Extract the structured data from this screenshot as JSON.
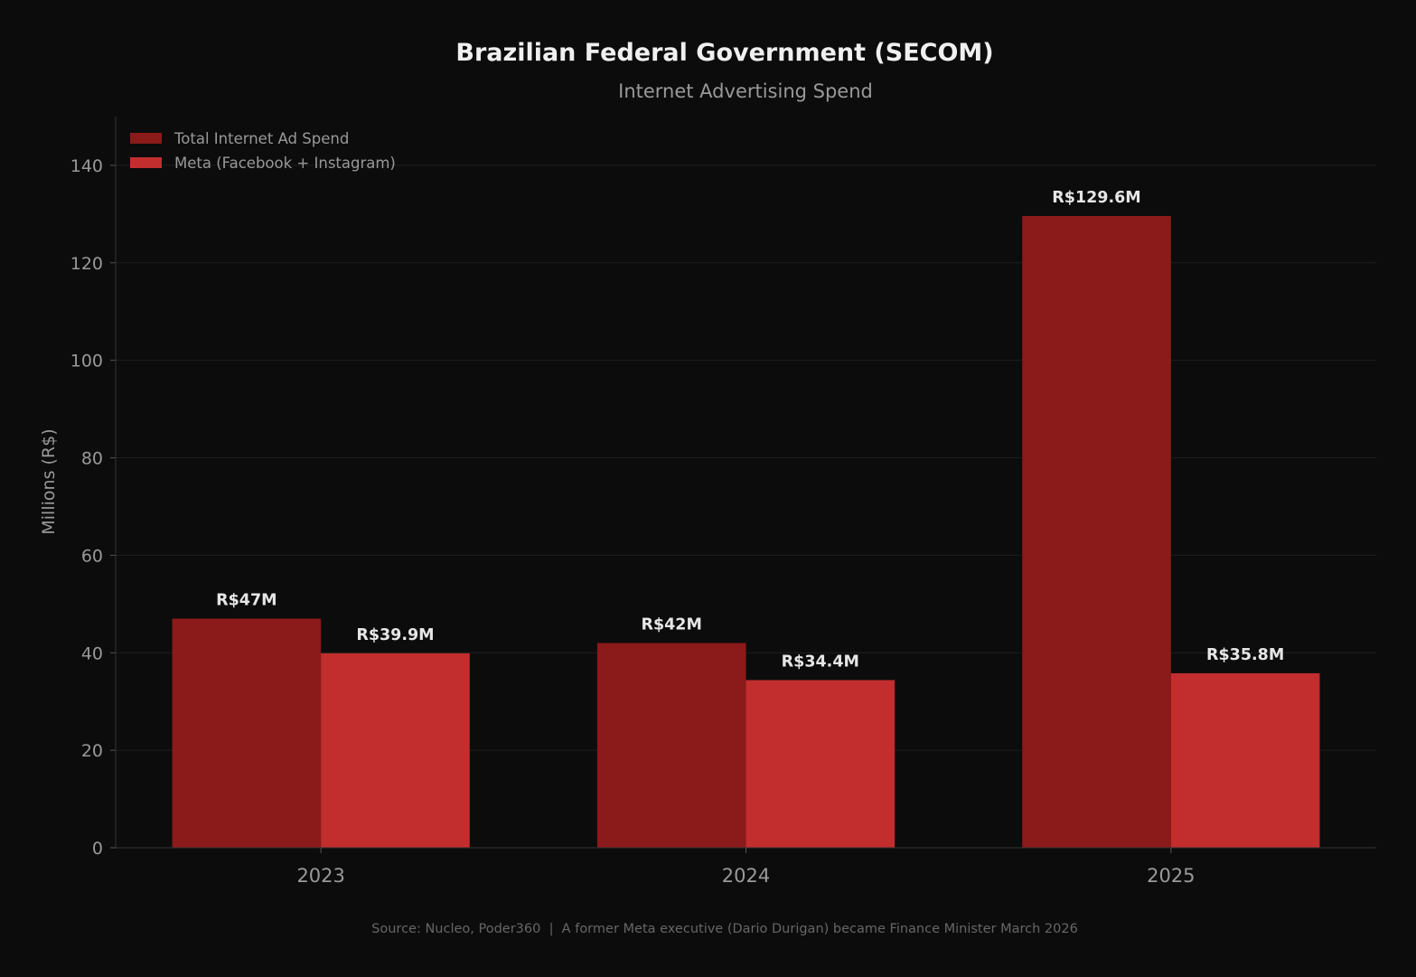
{
  "chart_data": {
    "type": "bar",
    "title": "Brazilian Federal Government (SECOM)",
    "subtitle": "Internet Advertising Spend",
    "xlabel": "",
    "ylabel": "Millions (R$)",
    "categories": [
      "2023",
      "2024",
      "2025"
    ],
    "series": [
      {
        "name": "Total Internet Ad Spend",
        "values": [
          47,
          42,
          129.6
        ],
        "labels": [
          "R$47M",
          "R$42M",
          "R$129.6M"
        ],
        "color": "#8b1a1a"
      },
      {
        "name": "Meta (Facebook + Instagram)",
        "values": [
          39.9,
          34.4,
          35.8
        ],
        "labels": [
          "R$39.9M",
          "R$34.4M",
          "R$35.8M"
        ],
        "color": "#c22d2e"
      }
    ],
    "ylim": [
      0,
      150
    ],
    "yticks": [
      0,
      20,
      40,
      60,
      80,
      100,
      120,
      140
    ],
    "grid": true,
    "legend_position": "top-left",
    "footer": "Source: Nucleo, Poder360  |  A former Meta executive (Dario Durigan) became Finance Minister March 2026",
    "colors": {
      "background": "#0c0c0c",
      "text": "#f0f0f0",
      "muted": "#999999",
      "grid": "#1e1e1e"
    }
  }
}
